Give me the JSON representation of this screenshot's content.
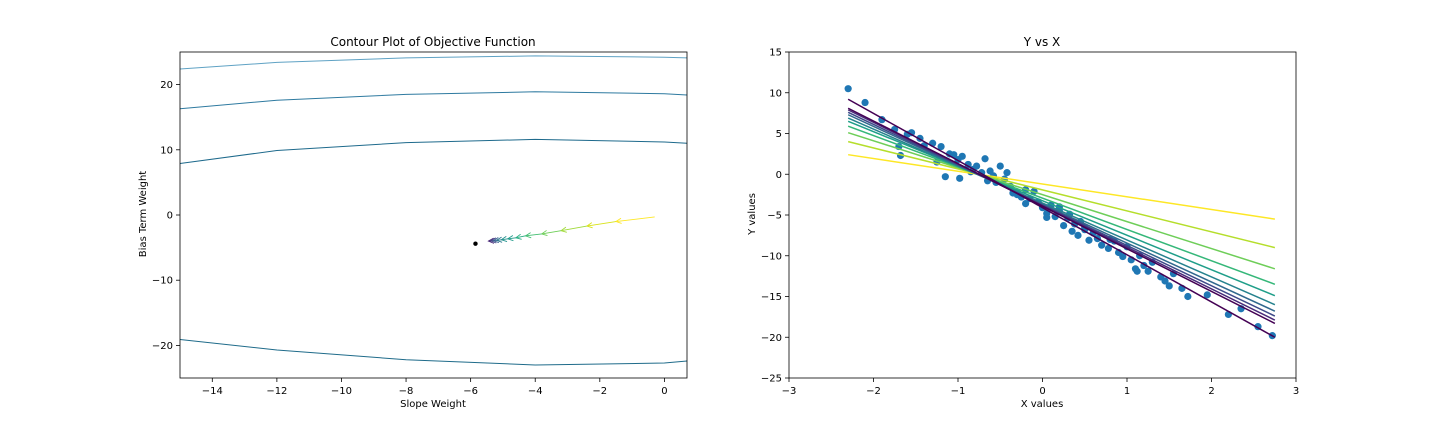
{
  "chart_data": [
    {
      "type": "contour",
      "title": "Contour Plot of Objective Function",
      "xlabel": "Slope Weight",
      "ylabel": "Bias Term Weight",
      "xlim": [
        -15,
        0.7
      ],
      "ylim": [
        -25,
        25
      ],
      "xticks": [
        -14,
        -12,
        -10,
        -8,
        -6,
        -4,
        -2,
        0
      ],
      "yticks": [
        -20,
        -10,
        0,
        10,
        20
      ],
      "xtick_labels": [
        "−14",
        "−12",
        "−10",
        "−8",
        "−6",
        "−4",
        "−2",
        "0"
      ],
      "ytick_labels": [
        "−20",
        "−10",
        "0",
        "10",
        "20"
      ],
      "grid": false,
      "contours": [
        {
          "color": "#5fa2c4",
          "points": [
            [
              -15,
              22.4
            ],
            [
              -12,
              23.4
            ],
            [
              -8,
              24.1
            ],
            [
              -4,
              24.4
            ],
            [
              0,
              24.2
            ],
            [
              0.7,
              24.1
            ]
          ]
        },
        {
          "color": "#2e7aa0",
          "points": [
            [
              -15,
              16.3
            ],
            [
              -12,
              17.6
            ],
            [
              -8,
              18.5
            ],
            [
              -4,
              18.9
            ],
            [
              0,
              18.6
            ],
            [
              0.7,
              18.4
            ]
          ]
        },
        {
          "color": "#1e6a8c",
          "points": [
            [
              -15,
              7.9
            ],
            [
              -12,
              9.9
            ],
            [
              -8,
              11.1
            ],
            [
              -4,
              11.6
            ],
            [
              0,
              11.2
            ],
            [
              0.7,
              11.0
            ]
          ]
        },
        {
          "color": "#1f6b8a",
          "points": [
            [
              -15,
              -19.1
            ],
            [
              -12,
              -20.7
            ],
            [
              -8,
              -22.2
            ],
            [
              -4,
              -23.0
            ],
            [
              0,
              -22.7
            ],
            [
              0.7,
              -22.4
            ]
          ]
        }
      ],
      "optimum": {
        "x": -5.85,
        "y": -4.4,
        "color": "#000000"
      },
      "path": [
        {
          "x": -0.3,
          "y": -0.3,
          "color": "#fde725"
        },
        {
          "x": -1.5,
          "y": -1.0,
          "color": "#d8e219"
        },
        {
          "x": -2.4,
          "y": -1.7,
          "color": "#a0da39"
        },
        {
          "x": -3.2,
          "y": -2.4,
          "color": "#6ece58"
        },
        {
          "x": -3.8,
          "y": -2.9,
          "color": "#43bf71"
        },
        {
          "x": -4.3,
          "y": -3.2,
          "color": "#26ad81"
        },
        {
          "x": -4.6,
          "y": -3.5,
          "color": "#1f9a8a"
        },
        {
          "x": -4.85,
          "y": -3.65,
          "color": "#21918c"
        },
        {
          "x": -5.05,
          "y": -3.8,
          "color": "#2a788e"
        },
        {
          "x": -5.2,
          "y": -3.88,
          "color": "#355f8d"
        },
        {
          "x": -5.3,
          "y": -3.94,
          "color": "#414487"
        },
        {
          "x": -5.38,
          "y": -3.98,
          "color": "#482878"
        },
        {
          "x": -5.45,
          "y": -4.0,
          "color": "#440154"
        }
      ]
    },
    {
      "type": "scatter",
      "title": "Y vs X",
      "xlabel": "X values",
      "ylabel": "Y values",
      "xlim": [
        -3,
        3
      ],
      "ylim": [
        -25,
        15
      ],
      "xticks": [
        -3,
        -2,
        -1,
        0,
        1,
        2,
        3
      ],
      "yticks": [
        -25,
        -20,
        -15,
        -10,
        -5,
        0,
        5,
        10,
        15
      ],
      "xtick_labels": [
        "−3",
        "−2",
        "−1",
        "0",
        "1",
        "2",
        "3"
      ],
      "ytick_labels": [
        "−25",
        "−20",
        "−15",
        "−10",
        "−5",
        "0",
        "5",
        "10",
        "15"
      ],
      "grid": false,
      "point_color": "#1f77b4",
      "points": [
        [
          -2.3,
          10.5
        ],
        [
          -2.1,
          8.8
        ],
        [
          -1.9,
          6.7
        ],
        [
          -1.75,
          5.5
        ],
        [
          -1.7,
          3.4
        ],
        [
          -1.68,
          2.3
        ],
        [
          -1.6,
          4.9
        ],
        [
          -1.55,
          5.1
        ],
        [
          -1.45,
          4.4
        ],
        [
          -1.4,
          3.5
        ],
        [
          -1.3,
          3.8
        ],
        [
          -1.2,
          3.4
        ],
        [
          -1.1,
          2.5
        ],
        [
          -1.05,
          2.4
        ],
        [
          -1.0,
          1.8
        ],
        [
          -0.95,
          2.2
        ],
        [
          -0.98,
          -0.5
        ],
        [
          -1.15,
          -0.3
        ],
        [
          -0.88,
          1.2
        ],
        [
          -0.82,
          0.6
        ],
        [
          -0.78,
          1.0
        ],
        [
          -0.72,
          0.2
        ],
        [
          -0.68,
          1.9
        ],
        [
          -0.62,
          0.4
        ],
        [
          -0.58,
          -0.2
        ],
        [
          -0.55,
          -1.0
        ],
        [
          -0.5,
          1.0
        ],
        [
          -0.45,
          -0.6
        ],
        [
          -0.42,
          0.2
        ],
        [
          -0.38,
          -1.5
        ],
        [
          -0.35,
          -2.3
        ],
        [
          -0.3,
          -2.2
        ],
        [
          -0.25,
          -2.8
        ],
        [
          -0.2,
          -3.6
        ],
        [
          -0.15,
          -3.0
        ],
        [
          -0.1,
          -2.1
        ],
        [
          -0.05,
          -3.4
        ],
        [
          0.0,
          -4.1
        ],
        [
          0.05,
          -4.8
        ],
        [
          0.1,
          -3.8
        ],
        [
          0.15,
          -5.2
        ],
        [
          0.2,
          -4.5
        ],
        [
          0.25,
          -6.3
        ],
        [
          0.3,
          -5.4
        ],
        [
          0.32,
          -4.9
        ],
        [
          0.38,
          -6.1
        ],
        [
          0.42,
          -7.5
        ],
        [
          0.45,
          -5.8
        ],
        [
          0.5,
          -6.8
        ],
        [
          0.55,
          -8.1
        ],
        [
          0.6,
          -7.2
        ],
        [
          0.65,
          -7.9
        ],
        [
          0.7,
          -8.7
        ],
        [
          0.78,
          -9.1
        ],
        [
          0.85,
          -8.2
        ],
        [
          0.9,
          -9.6
        ],
        [
          0.95,
          -10.1
        ],
        [
          1.0,
          -8.9
        ],
        [
          1.05,
          -10.5
        ],
        [
          1.1,
          -11.6
        ],
        [
          1.12,
          -11.9
        ],
        [
          1.2,
          -11.2
        ],
        [
          1.25,
          -11.9
        ],
        [
          1.3,
          -10.8
        ],
        [
          1.4,
          -12.6
        ],
        [
          1.45,
          -13.1
        ],
        [
          1.5,
          -13.7
        ],
        [
          1.55,
          -12.2
        ],
        [
          1.65,
          -14.0
        ],
        [
          1.72,
          -15.0
        ],
        [
          1.95,
          -14.8
        ],
        [
          2.2,
          -17.2
        ],
        [
          2.35,
          -16.5
        ],
        [
          2.55,
          -18.7
        ],
        [
          2.72,
          -19.8
        ],
        [
          0.2,
          -4.0
        ],
        [
          -0.3,
          -2.5
        ],
        [
          0.5,
          -6.5
        ],
        [
          0.8,
          -8.0
        ],
        [
          -0.65,
          -0.8
        ],
        [
          -0.85,
          0.3
        ],
        [
          -1.25,
          1.5
        ],
        [
          0.05,
          -5.3
        ],
        [
          0.35,
          -7.0
        ],
        [
          1.15,
          -10.0
        ],
        [
          -0.2,
          -1.9
        ]
      ],
      "fit_lines": [
        {
          "color": "#fde725",
          "x": [
            -2.3,
            2.75
          ],
          "y": [
            2.4,
            -5.5
          ]
        },
        {
          "color": "#b5de2b",
          "x": [
            -2.3,
            2.75
          ],
          "y": [
            4.0,
            -9.0
          ]
        },
        {
          "color": "#6ece58",
          "x": [
            -2.3,
            2.75
          ],
          "y": [
            5.1,
            -11.6
          ]
        },
        {
          "color": "#35b779",
          "x": [
            -2.3,
            2.75
          ],
          "y": [
            5.9,
            -13.5
          ]
        },
        {
          "color": "#1f9e89",
          "x": [
            -2.3,
            2.75
          ],
          "y": [
            6.5,
            -14.9
          ]
        },
        {
          "color": "#26828e",
          "x": [
            -2.3,
            2.75
          ],
          "y": [
            6.9,
            -16.0
          ]
        },
        {
          "color": "#31688e",
          "x": [
            -2.3,
            2.75
          ],
          "y": [
            7.3,
            -16.8
          ]
        },
        {
          "color": "#3e4989",
          "x": [
            -2.3,
            2.75
          ],
          "y": [
            7.6,
            -17.4
          ]
        },
        {
          "color": "#482878",
          "x": [
            -2.3,
            2.75
          ],
          "y": [
            7.9,
            -17.9
          ]
        },
        {
          "color": "#440154",
          "x": [
            -2.3,
            2.75
          ],
          "y": [
            8.1,
            -18.3
          ]
        },
        {
          "color": "#440154",
          "x": [
            -2.3,
            2.75
          ],
          "y": [
            9.2,
            -20.0
          ]
        }
      ]
    }
  ]
}
